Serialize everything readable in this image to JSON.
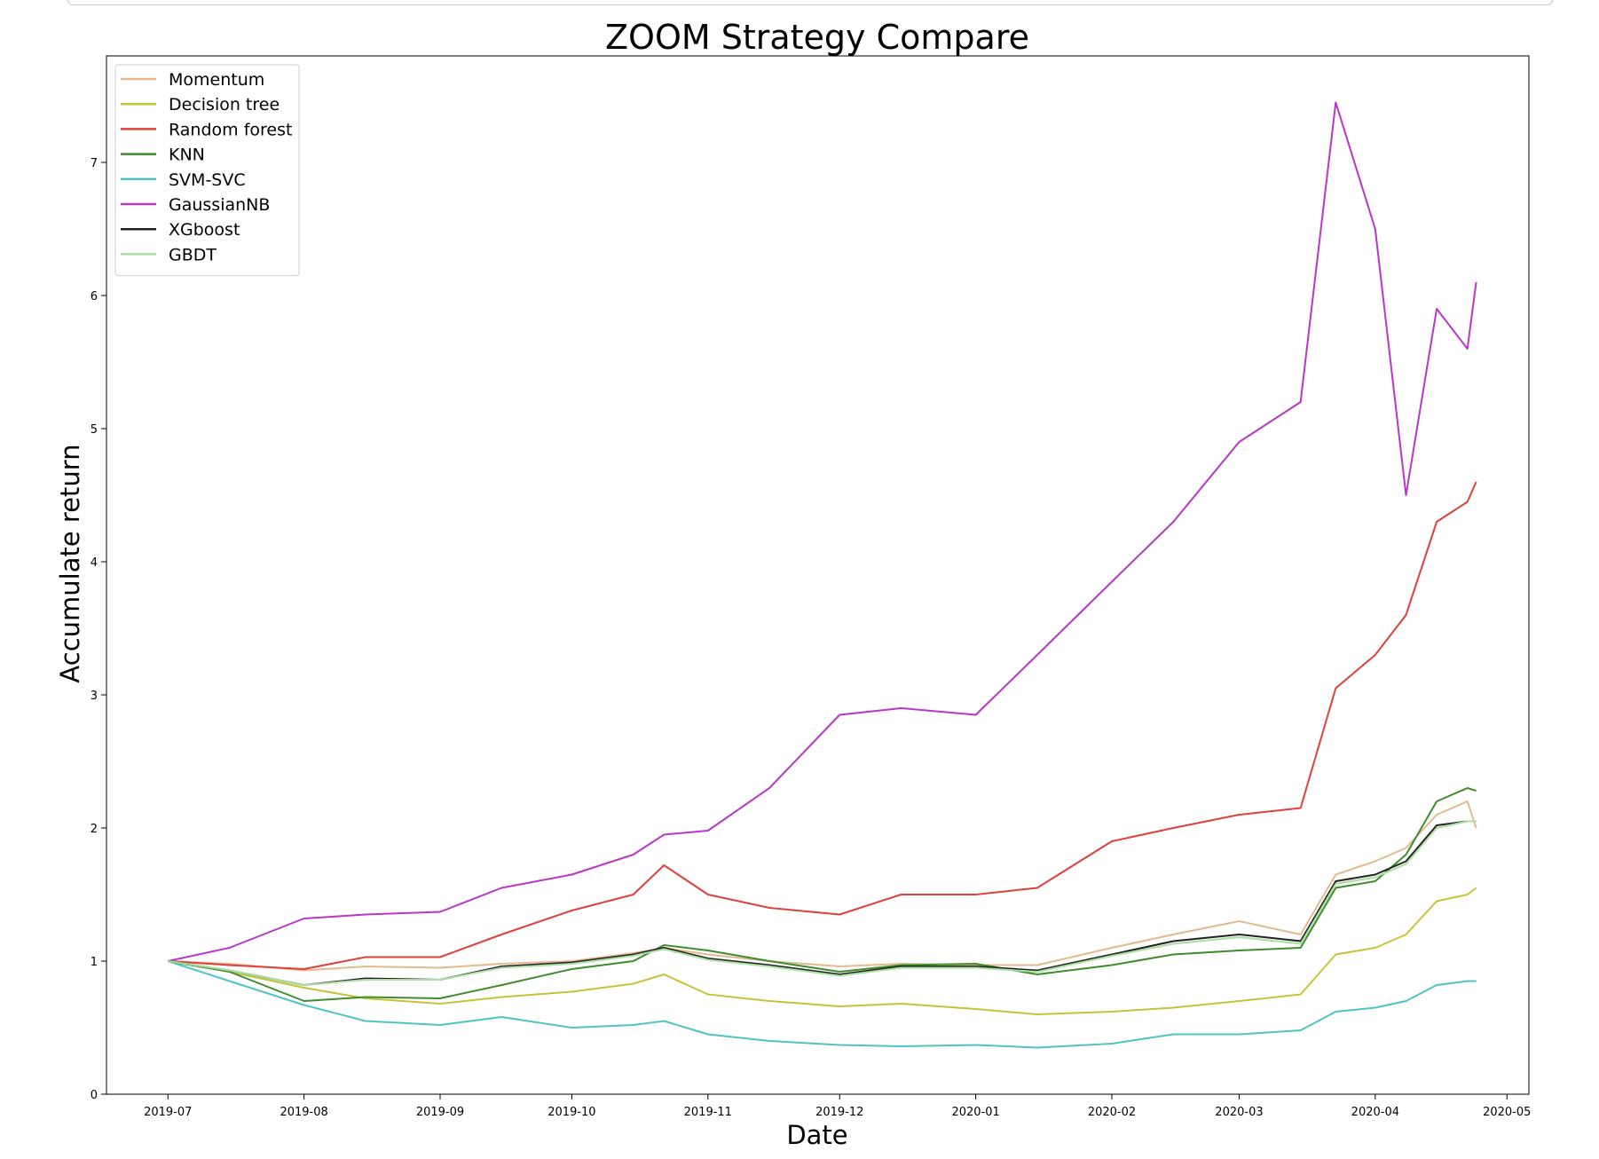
{
  "chart_data": {
    "type": "line",
    "title": "ZOOM Strategy Compare",
    "xlabel": "Date",
    "ylabel": "Accumulate return",
    "x_ticks": [
      "2019-07",
      "2019-08",
      "2019-09",
      "2019-10",
      "2019-11",
      "2019-12",
      "2020-01",
      "2020-02",
      "2020-03",
      "2020-04",
      "2020-05"
    ],
    "y_ticks": [
      0,
      1,
      2,
      3,
      4,
      5,
      6,
      7
    ],
    "xlim": [
      "2019-06-17",
      "2020-05-06"
    ],
    "ylim": [
      0,
      7.8
    ],
    "grid": false,
    "legend_position": "upper-left",
    "x": [
      "2019-07-01",
      "2019-07-15",
      "2019-08-01",
      "2019-08-15",
      "2019-09-01",
      "2019-09-15",
      "2019-10-01",
      "2019-10-15",
      "2019-10-22",
      "2019-11-01",
      "2019-11-15",
      "2019-12-01",
      "2019-12-15",
      "2020-01-01",
      "2020-01-15",
      "2020-02-01",
      "2020-02-15",
      "2020-03-01",
      "2020-03-15",
      "2020-03-23",
      "2020-04-01",
      "2020-04-08",
      "2020-04-15",
      "2020-04-22",
      "2020-04-24"
    ],
    "series": [
      {
        "name": "Momentum",
        "color": "#e4b98f",
        "values": [
          1.0,
          0.98,
          0.93,
          0.96,
          0.95,
          0.98,
          1.0,
          1.06,
          1.1,
          1.05,
          1.0,
          0.96,
          0.98,
          0.97,
          0.97,
          1.1,
          1.2,
          1.3,
          1.2,
          1.65,
          1.75,
          1.85,
          2.1,
          2.2,
          2.0
        ]
      },
      {
        "name": "Decision tree",
        "color": "#c7c339",
        "values": [
          1.0,
          0.92,
          0.8,
          0.72,
          0.68,
          0.73,
          0.77,
          0.83,
          0.9,
          0.75,
          0.7,
          0.66,
          0.68,
          0.64,
          0.6,
          0.62,
          0.65,
          0.7,
          0.75,
          1.05,
          1.1,
          1.2,
          1.45,
          1.5,
          1.55
        ]
      },
      {
        "name": "Random forest",
        "color": "#e0403a",
        "values": [
          1.0,
          0.97,
          0.94,
          1.03,
          1.03,
          1.2,
          1.38,
          1.5,
          1.72,
          1.5,
          1.4,
          1.35,
          1.5,
          1.5,
          1.55,
          1.9,
          2.0,
          2.1,
          2.15,
          3.05,
          3.3,
          3.6,
          4.3,
          4.45,
          4.6
        ]
      },
      {
        "name": "KNN",
        "color": "#3f8d2c",
        "values": [
          1.0,
          0.92,
          0.7,
          0.73,
          0.72,
          0.82,
          0.94,
          1.0,
          1.12,
          1.08,
          1.0,
          0.92,
          0.97,
          0.98,
          0.9,
          0.97,
          1.05,
          1.08,
          1.1,
          1.55,
          1.6,
          1.8,
          2.2,
          2.3,
          2.28
        ]
      },
      {
        "name": "SVM-SVC",
        "color": "#4fc4c4",
        "values": [
          1.0,
          0.85,
          0.67,
          0.55,
          0.52,
          0.58,
          0.5,
          0.52,
          0.55,
          0.45,
          0.4,
          0.37,
          0.36,
          0.37,
          0.35,
          0.38,
          0.45,
          0.45,
          0.48,
          0.62,
          0.65,
          0.7,
          0.82,
          0.85,
          0.85
        ]
      },
      {
        "name": "GaussianNB",
        "color": "#b936c8",
        "values": [
          1.0,
          1.1,
          1.32,
          1.35,
          1.37,
          1.55,
          1.65,
          1.8,
          1.95,
          1.98,
          2.3,
          2.85,
          2.9,
          2.85,
          3.3,
          3.85,
          4.3,
          4.9,
          5.2,
          7.45,
          6.5,
          4.5,
          5.9,
          5.6,
          6.1
        ]
      },
      {
        "name": "XGboost",
        "color": "#222222",
        "values": [
          1.0,
          0.93,
          0.82,
          0.87,
          0.86,
          0.96,
          0.99,
          1.05,
          1.1,
          1.02,
          0.97,
          0.9,
          0.96,
          0.96,
          0.93,
          1.05,
          1.15,
          1.2,
          1.15,
          1.6,
          1.65,
          1.75,
          2.02,
          2.05,
          2.05
        ]
      },
      {
        "name": "GBDT",
        "color": "#a8dea0",
        "values": [
          1.0,
          0.93,
          0.82,
          0.86,
          0.86,
          0.95,
          0.98,
          1.04,
          1.09,
          1.01,
          0.96,
          0.89,
          0.95,
          0.95,
          0.92,
          1.04,
          1.13,
          1.18,
          1.13,
          1.58,
          1.63,
          1.73,
          2.0,
          2.05,
          2.05
        ]
      }
    ]
  }
}
